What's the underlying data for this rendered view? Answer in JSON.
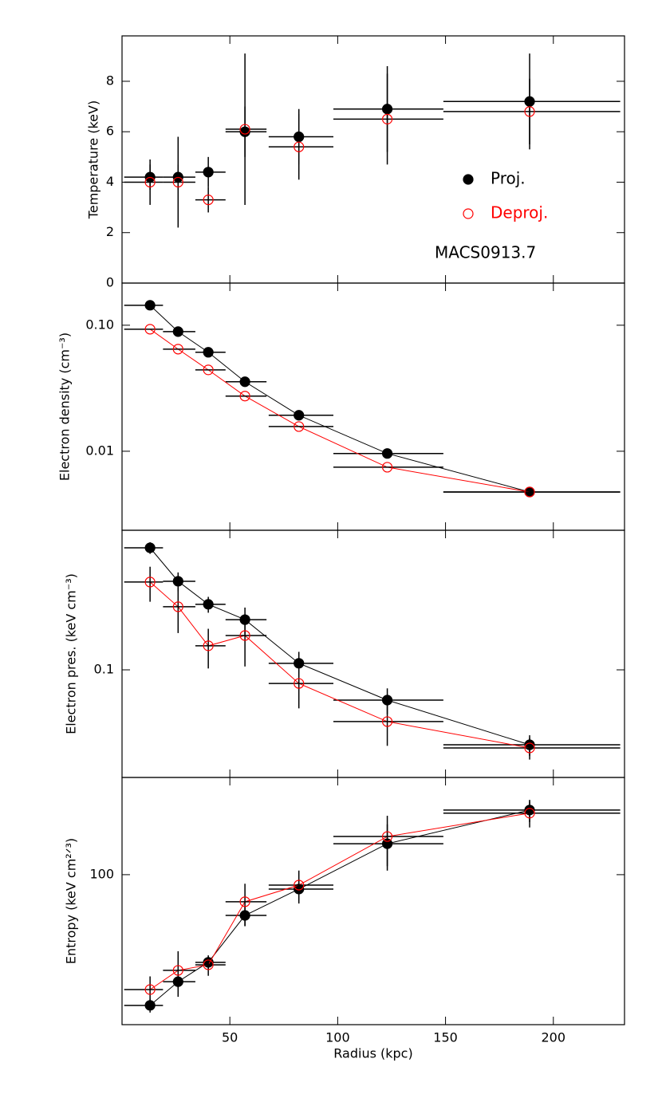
{
  "chart_data": [
    {
      "type": "scatter",
      "ylabel": "Temperature (keV)",
      "yscale": "linear",
      "xlim": [
        0,
        233
      ],
      "xticks": [
        50,
        100,
        150,
        200
      ],
      "ylim": [
        0,
        9.8
      ],
      "yticks": [
        0,
        2,
        4,
        6,
        8
      ],
      "x": [
        13,
        26,
        40,
        57,
        82,
        123,
        189
      ],
      "xlo": [
        1,
        19,
        34,
        48,
        68,
        98,
        149
      ],
      "xhi": [
        19,
        34,
        48,
        67,
        98,
        149,
        231
      ],
      "connect": false,
      "series": [
        {
          "name": "Proj.",
          "color": "#000000",
          "marker": "filled",
          "values": [
            4.2,
            4.2,
            4.4,
            6.0,
            5.8,
            6.9,
            7.2
          ],
          "yerr": [
            0.5,
            0.5,
            0.6,
            1.0,
            1.1,
            1.7,
            1.9
          ]
        },
        {
          "name": "Deproj.",
          "color": "#ff0000",
          "marker": "open",
          "values": [
            4.0,
            4.0,
            3.3,
            6.1,
            5.4,
            6.5,
            6.8
          ],
          "yerr": [
            0.9,
            1.8,
            0.5,
            3.0,
            1.3,
            1.8,
            1.3
          ]
        }
      ],
      "legend": "right",
      "annotation": "MACS0913.7"
    },
    {
      "type": "scatter",
      "ylabel": "Electron density (cm⁻³)",
      "yscale": "log",
      "xlim": [
        0,
        233
      ],
      "xticks": [
        50,
        100,
        150,
        200
      ],
      "ylim": [
        0.00236,
        0.216
      ],
      "yticks": [
        {
          "value": 0.1,
          "label": "0.10"
        },
        0.01
      ],
      "x": [
        13,
        26,
        40,
        57,
        82,
        123,
        189
      ],
      "xlo": [
        1,
        19,
        34,
        48,
        68,
        98,
        149
      ],
      "xhi": [
        19,
        34,
        48,
        67,
        98,
        149,
        231
      ],
      "connect": true,
      "series": [
        {
          "name": "Proj.",
          "color": "#000000",
          "marker": "filled",
          "values": [
            0.144,
            0.089,
            0.061,
            0.0356,
            0.0193,
            0.0096,
            0.00475
          ]
        },
        {
          "name": "Deproj.",
          "color": "#ff0000",
          "marker": "open",
          "values": [
            0.093,
            0.0646,
            0.0442,
            0.0274,
            0.0157,
            0.00747,
            0.00475
          ]
        }
      ]
    },
    {
      "type": "scatter",
      "ylabel": "Electron pres. (keV cm⁻³)",
      "yscale": "log",
      "xlim": [
        0,
        233
      ],
      "xticks": [
        50,
        100,
        150,
        200
      ],
      "ylim": [
        0.0208,
        0.766
      ],
      "yticks": [
        0.1
      ],
      "x": [
        13,
        26,
        40,
        57,
        82,
        123,
        189
      ],
      "xlo": [
        1,
        19,
        34,
        48,
        68,
        98,
        149
      ],
      "xhi": [
        19,
        34,
        48,
        67,
        98,
        149,
        231
      ],
      "connect": true,
      "series": [
        {
          "name": "Proj.",
          "color": "#000000",
          "marker": "filled",
          "values": [
            0.593,
            0.364,
            0.26,
            0.208,
            0.11,
            0.0643,
            0.0335
          ],
          "yerr": [
            0.05,
            0.05,
            0.03,
            0.04,
            0.02,
            0.012,
            0.005
          ]
        },
        {
          "name": "Deproj.",
          "color": "#ff0000",
          "marker": "open",
          "values": [
            0.36,
            0.251,
            0.142,
            0.165,
            0.082,
            0.047,
            0.032
          ],
          "yerr": [
            0.09,
            0.08,
            0.04,
            0.06,
            0.025,
            0.014,
            0.005
          ]
        }
      ]
    },
    {
      "type": "scatter",
      "ylabel": "Entropy (keV cm²ᐟ³)",
      "yscale": "log",
      "xlabel": "Radius (kpc)",
      "xlim": [
        0,
        233
      ],
      "xticks": [
        50,
        100,
        150,
        200
      ],
      "ylim": [
        11.6,
        404
      ],
      "yticks": [
        100
      ],
      "x": [
        13,
        26,
        40,
        57,
        82,
        123,
        189
      ],
      "xlo": [
        1,
        19,
        34,
        48,
        68,
        98,
        149
      ],
      "xhi": [
        19,
        34,
        48,
        67,
        98,
        149,
        231
      ],
      "connect": true,
      "series": [
        {
          "name": "Proj.",
          "color": "#000000",
          "marker": "filled",
          "values": [
            15.3,
            21.5,
            28.4,
            55.7,
            81.3,
            156,
            253
          ],
          "yerr": [
            1.5,
            2,
            2.5,
            8,
            12,
            50,
            40
          ]
        },
        {
          "name": "Deproj.",
          "color": "#ff0000",
          "marker": "open",
          "values": [
            19.2,
            25.3,
            27.4,
            67.8,
            86.1,
            173,
            242
          ],
          "yerr": [
            4,
            8,
            4,
            20,
            20,
            60,
            45
          ]
        }
      ]
    }
  ]
}
